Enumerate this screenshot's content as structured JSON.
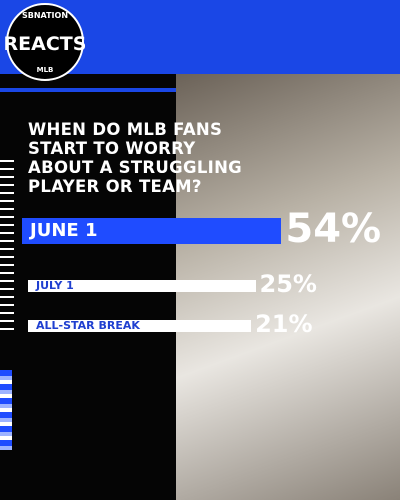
{
  "logo": {
    "top": "SBNATION",
    "main": "REACTS",
    "bottom": "MLB"
  },
  "chart_data": {
    "type": "bar",
    "orientation": "horizontal",
    "title": "WHEN DO MLB FANS START TO WORRY ABOUT A STRUGGLING PLAYER OR TEAM?",
    "categories": [
      "JUNE 1",
      "JULY 1",
      "ALL-STAR BREAK"
    ],
    "values": [
      54,
      25,
      21
    ],
    "value_labels": [
      "54%",
      "25%",
      "21%"
    ],
    "colors": [
      "#1f4cff",
      "#ffffff",
      "#ffffff"
    ]
  }
}
